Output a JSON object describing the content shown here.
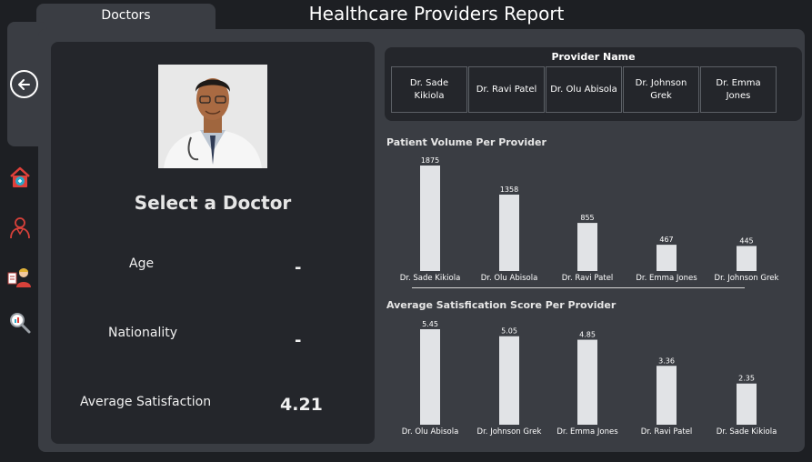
{
  "tab": {
    "label": "Doctors"
  },
  "header": {
    "title": "Healthcare Providers Report"
  },
  "nav": {
    "back_icon": "arrow-left-circle-icon",
    "items": [
      {
        "icon": "hospital-icon"
      },
      {
        "icon": "doctor-icon"
      },
      {
        "icon": "patient-card-icon"
      },
      {
        "icon": "magnifier-analytics-icon"
      }
    ]
  },
  "doctor": {
    "prompt": "Select a Doctor",
    "age_label": "Age",
    "age_value": "-",
    "nationality_label": "Nationality",
    "nationality_value": "-",
    "satisfaction_label": "Average Satisfaction",
    "satisfaction_value": "4.21"
  },
  "slicer": {
    "title": "Provider Name",
    "items": [
      "Dr. Sade Kikiola",
      "Dr. Ravi Patel",
      "Dr. Olu Abisola",
      "Dr. Johnson Grek",
      "Dr. Emma Jones"
    ]
  },
  "chart_data": [
    {
      "type": "bar",
      "title": "Patient Volume Per Provider",
      "categories": [
        "Dr. Sade Kikiola",
        "Dr. Olu Abisola",
        "Dr. Ravi Patel",
        "Dr. Emma Jones",
        "Dr. Johnson Grek"
      ],
      "values": [
        1875,
        1358,
        855,
        467,
        445
      ],
      "value_labels": [
        "1875",
        "1358",
        "855",
        "467",
        "445"
      ],
      "ylim": [
        0,
        1875
      ],
      "grid": false,
      "bar_color": "#e1e3e6"
    },
    {
      "type": "bar",
      "title": "Average Satisfication Score Per Provider",
      "categories": [
        "Dr. Olu Abisola",
        "Dr. Johnson Grek",
        "Dr. Emma Jones",
        "Dr. Ravi Patel",
        "Dr. Sade Kikiola"
      ],
      "values": [
        5.45,
        5.05,
        4.85,
        3.36,
        2.35
      ],
      "value_labels": [
        "5.45",
        "5.05",
        "4.85",
        "3.36",
        "2.35"
      ],
      "ylim": [
        0,
        5.45
      ],
      "grid": false,
      "bar_color": "#e1e3e6"
    }
  ]
}
